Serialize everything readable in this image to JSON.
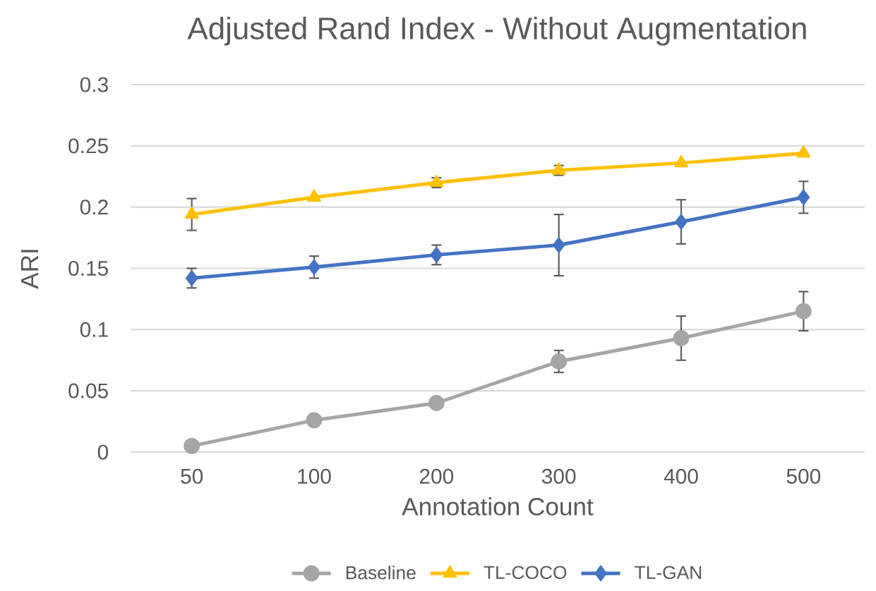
{
  "chart_data": {
    "type": "line",
    "title": "Adjusted Rand Index - Without Augmentation",
    "xlabel": "Annotation Count",
    "ylabel": "ARI",
    "categories": [
      "50",
      "100",
      "200",
      "300",
      "400",
      "500"
    ],
    "series": [
      {
        "name": "Baseline",
        "color": "#a5a5a5",
        "marker": "circle",
        "values": [
          0.005,
          0.026,
          0.04,
          0.074,
          0.093,
          0.115
        ],
        "errors": [
          null,
          null,
          null,
          0.009,
          0.018,
          0.016
        ]
      },
      {
        "name": "TL-COCO",
        "color": "#ffc000",
        "marker": "triangle",
        "values": [
          0.194,
          0.208,
          0.22,
          0.23,
          0.236,
          0.244
        ],
        "errors": [
          0.013,
          null,
          0.004,
          0.004,
          null,
          null
        ]
      },
      {
        "name": "TL-GAN",
        "color": "#4472c4",
        "marker": "diamond",
        "values": [
          0.142,
          0.151,
          0.161,
          0.169,
          0.188,
          0.208
        ],
        "errors": [
          0.008,
          0.009,
          0.008,
          0.025,
          0.018,
          0.013
        ]
      }
    ],
    "ylim": [
      0,
      0.3
    ],
    "yticks": [
      0,
      0.05,
      0.1,
      0.15,
      0.2,
      0.25,
      0.3
    ],
    "grid": "y",
    "legend": "bottom"
  }
}
